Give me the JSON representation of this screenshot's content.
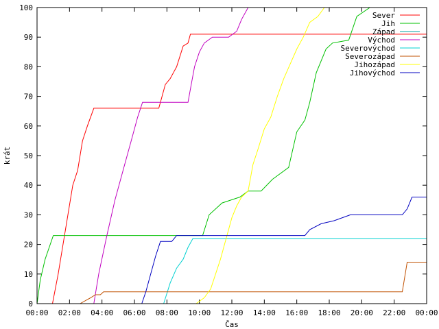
{
  "chart_data": {
    "type": "line",
    "xlabel": "Čas",
    "ylabel": "krát",
    "xlim": [
      0,
      24
    ],
    "ylim": [
      0,
      100
    ],
    "x_ticks": [
      {
        "value": 0,
        "label": "00:00"
      },
      {
        "value": 2,
        "label": "02:00"
      },
      {
        "value": 4,
        "label": "04:00"
      },
      {
        "value": 6,
        "label": "06:00"
      },
      {
        "value": 8,
        "label": "08:00"
      },
      {
        "value": 10,
        "label": "10:00"
      },
      {
        "value": 12,
        "label": "12:00"
      },
      {
        "value": 14,
        "label": "14:00"
      },
      {
        "value": 16,
        "label": "16:00"
      },
      {
        "value": 18,
        "label": "18:00"
      },
      {
        "value": 20,
        "label": "20:00"
      },
      {
        "value": 22,
        "label": "22:00"
      },
      {
        "value": 24,
        "label": "00:00"
      }
    ],
    "y_ticks": [
      0,
      10,
      20,
      30,
      40,
      50,
      60,
      70,
      80,
      90,
      100
    ],
    "grid": false,
    "legend_position": "top-right",
    "series": [
      {
        "name": "Sever",
        "color": "#ff0000",
        "x": [
          0.0,
          0.95,
          1.3,
          1.6,
          1.9,
          2.2,
          2.5,
          2.8,
          3.1,
          3.5,
          7.5,
          7.9,
          8.2,
          8.6,
          9.0,
          9.3,
          9.45,
          24.0
        ],
        "y": [
          0,
          0,
          10,
          20,
          30,
          40,
          45,
          55,
          60,
          66,
          66,
          74,
          76,
          80,
          87,
          88,
          91,
          91
        ]
      },
      {
        "name": "Jih",
        "color": "#00c000",
        "x": [
          0.0,
          0.2,
          0.5,
          1.0,
          10.2,
          10.6,
          11.4,
          12.5,
          13.0,
          13.8,
          14.5,
          15.5,
          16.0,
          16.5,
          16.8,
          17.2,
          17.8,
          18.2,
          19.2,
          19.7,
          20.5,
          24.0
        ],
        "y": [
          0,
          8,
          15,
          23,
          23,
          30,
          34,
          36,
          38,
          38,
          42,
          46,
          58,
          62,
          68,
          78,
          86,
          88,
          89,
          97,
          100,
          100
        ]
      },
      {
        "name": "Západ",
        "color": "#00a0a0",
        "x": [],
        "y": []
      },
      {
        "name": "Východ",
        "color": "#c000c0",
        "x": [
          0.0,
          3.5,
          3.8,
          4.3,
          4.8,
          5.3,
          5.8,
          6.2,
          6.5,
          9.3,
          9.5,
          9.7,
          10.0,
          10.3,
          10.8,
          11.8,
          12.3,
          12.6,
          13.0,
          24.0
        ],
        "y": [
          0,
          0,
          10,
          23,
          35,
          45,
          55,
          63,
          68,
          68,
          74,
          80,
          85,
          88,
          90,
          90,
          92,
          96,
          100,
          100
        ]
      },
      {
        "name": "Severovýchod",
        "color": "#00d0d0",
        "x": [
          0.0,
          7.8,
          8.2,
          8.6,
          9.0,
          9.3,
          9.6,
          24.0
        ],
        "y": [
          0,
          0,
          7,
          12,
          15,
          19,
          22,
          22
        ]
      },
      {
        "name": "Severozápad",
        "color": "#c05000",
        "x": [
          0.0,
          2.65,
          3.3,
          3.6,
          3.9,
          4.1,
          22.5,
          22.8,
          24.0
        ],
        "y": [
          0,
          0,
          2,
          3,
          3,
          4,
          4,
          14,
          14
        ]
      },
      {
        "name": "Jihozápad",
        "color": "#ffff00",
        "x": [
          0.0,
          9.8,
          10.3,
          10.7,
          11.0,
          11.3,
          11.6,
          12.0,
          12.3,
          12.6,
          13.0,
          13.3,
          13.6,
          14.0,
          14.4,
          14.8,
          15.2,
          15.6,
          16.0,
          16.4,
          16.8,
          17.3,
          17.7,
          24.0
        ],
        "y": [
          0,
          0,
          2,
          5,
          10,
          15,
          21,
          29,
          33,
          36,
          38,
          47,
          52,
          59,
          63,
          70,
          76,
          81,
          86,
          90,
          95,
          97,
          100,
          100
        ]
      },
      {
        "name": "Jihovýchod",
        "color": "#0000c0",
        "x": [
          0.0,
          6.45,
          6.7,
          7.0,
          7.3,
          7.6,
          8.3,
          8.6,
          16.5,
          16.8,
          17.5,
          18.3,
          19.3,
          22.5,
          22.8,
          23.1,
          24.0
        ],
        "y": [
          0,
          0,
          4,
          10,
          16,
          21,
          21,
          23,
          23,
          25,
          27,
          28,
          30,
          30,
          32,
          36,
          36
        ]
      }
    ]
  }
}
